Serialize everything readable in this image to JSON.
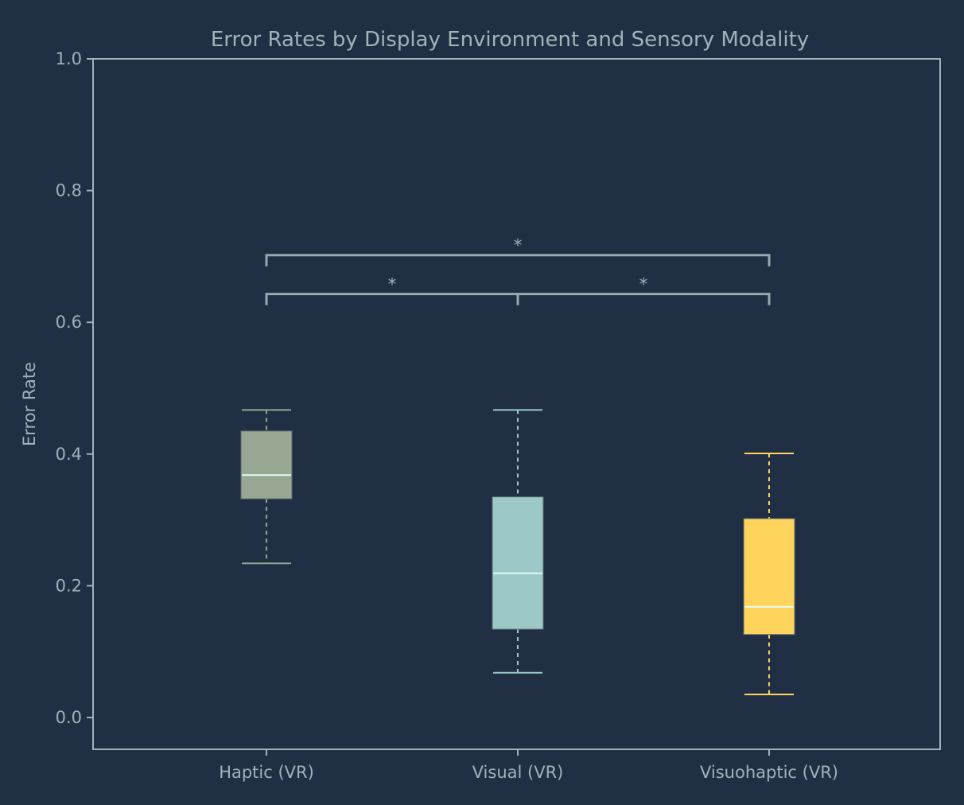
{
  "chart_data": {
    "type": "box",
    "title": "Error Rates by Display Environment and Sensory Modality",
    "xlabel": "",
    "ylabel": "Error Rate",
    "ylim": [
      -0.05,
      1.0
    ],
    "yticks": [
      "0.0",
      "0.2",
      "0.4",
      "0.6",
      "0.8",
      "1.0"
    ],
    "ytick_values": [
      0,
      0.2,
      0.4,
      0.6,
      0.8,
      1.0
    ],
    "grid": false,
    "categories": [
      "Haptic (VR)",
      "Visual (VR)",
      "Visuohaptic (VR)"
    ],
    "boxes": [
      {
        "whisker_low": 0.234,
        "q1": 0.332,
        "median": 0.368,
        "q3": 0.435,
        "whisker_high": 0.467,
        "color": "#97a791"
      },
      {
        "whisker_low": 0.068,
        "q1": 0.134,
        "median": 0.219,
        "q3": 0.335,
        "whisker_high": 0.467,
        "color": "#9dc8c8"
      },
      {
        "whisker_low": 0.035,
        "q1": 0.126,
        "median": 0.168,
        "q3": 0.302,
        "whisker_high": 0.401,
        "color": "#ffd45c"
      }
    ],
    "median_color": "#e0fbf5",
    "significance": [
      {
        "from": 0,
        "to": 1,
        "y": 0.643,
        "label": "*"
      },
      {
        "from": 1,
        "to": 2,
        "y": 0.643,
        "label": "*"
      },
      {
        "from": 0,
        "to": 2,
        "y": 0.702,
        "label": "*"
      }
    ],
    "colors": {
      "background": "#212f44",
      "axis": "#a3b1b8"
    }
  }
}
